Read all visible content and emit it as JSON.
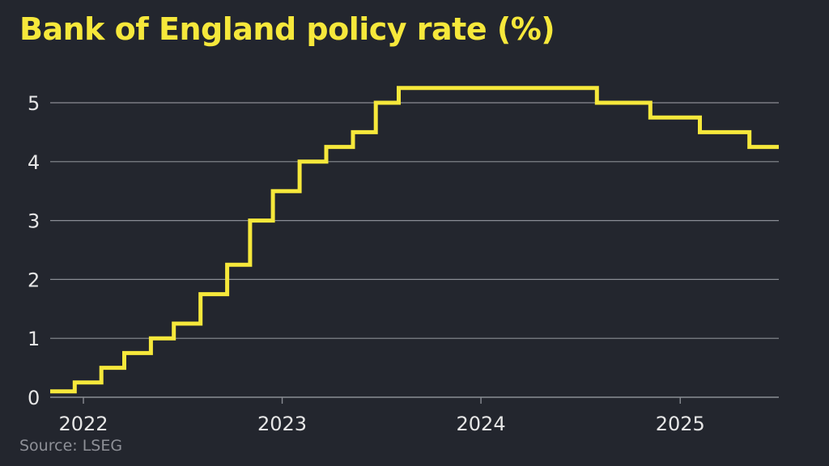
{
  "title": "Bank of England policy rate (%)",
  "source": "Source: LSEG",
  "colors": {
    "background": "#23262e",
    "line": "#f6e83b",
    "grid": "#8a8d94",
    "text": "#e6e6e6",
    "source": "#8e9097"
  },
  "chart_data": {
    "type": "line",
    "step": true,
    "title": "Bank of England policy rate (%)",
    "xlabel": "",
    "ylabel": "",
    "grid": true,
    "xlim": [
      "2021-11-01",
      "2025-07-01"
    ],
    "ylim": [
      0,
      5.25
    ],
    "yticks": [
      0,
      1,
      2,
      3,
      4,
      5
    ],
    "xticks": [
      {
        "label": "2022",
        "date": "2022-01-01"
      },
      {
        "label": "2023",
        "date": "2023-01-01"
      },
      {
        "label": "2024",
        "date": "2024-01-01"
      },
      {
        "label": "2025",
        "date": "2025-01-01"
      }
    ],
    "series": [
      {
        "points": [
          [
            "2021-11-01",
            0.1
          ],
          [
            "2021-12-16",
            0.25
          ],
          [
            "2022-02-03",
            0.5
          ],
          [
            "2022-03-17",
            0.75
          ],
          [
            "2022-05-05",
            1.0
          ],
          [
            "2022-06-16",
            1.25
          ],
          [
            "2022-08-04",
            1.75
          ],
          [
            "2022-09-22",
            2.25
          ],
          [
            "2022-11-03",
            3.0
          ],
          [
            "2022-12-15",
            3.5
          ],
          [
            "2023-02-02",
            4.0
          ],
          [
            "2023-03-23",
            4.25
          ],
          [
            "2023-05-11",
            4.5
          ],
          [
            "2023-06-22",
            5.0
          ],
          [
            "2023-08-03",
            5.25
          ],
          [
            "2024-08-01",
            5.0
          ],
          [
            "2024-11-07",
            4.75
          ],
          [
            "2025-02-06",
            4.5
          ],
          [
            "2025-05-08",
            4.25
          ],
          [
            "2025-07-01",
            4.25
          ]
        ]
      }
    ]
  }
}
